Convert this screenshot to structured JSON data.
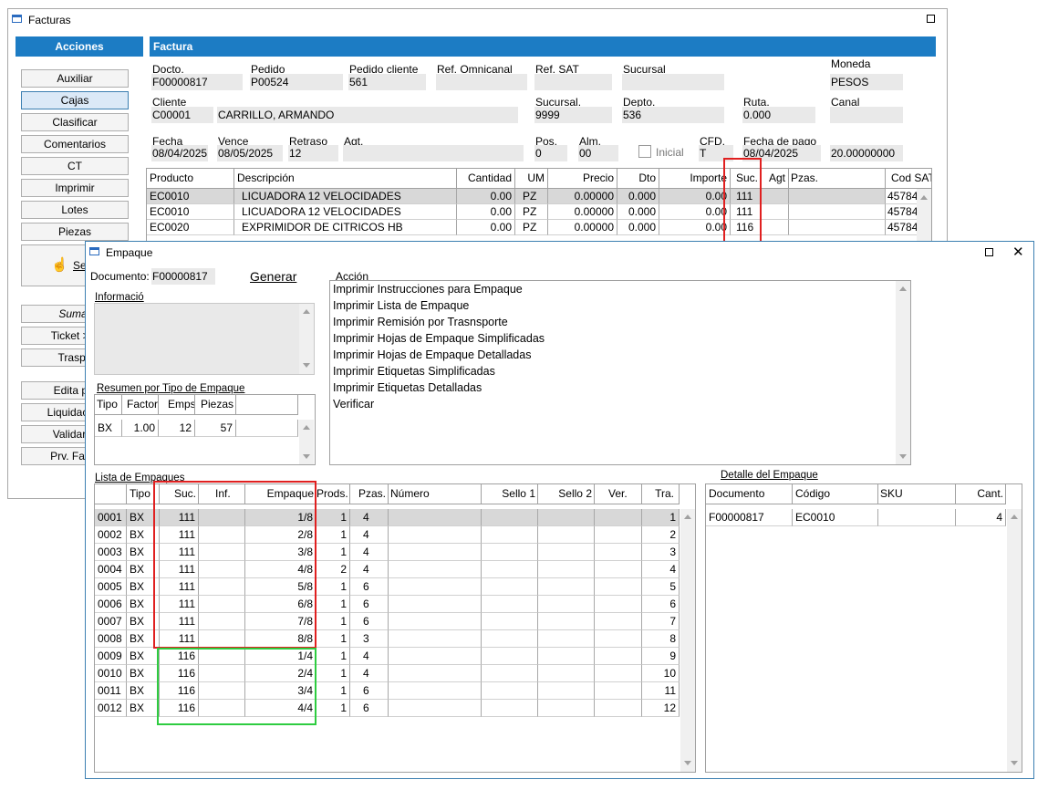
{
  "facturas": {
    "title": "Facturas",
    "acciones_header": "Acciones",
    "factura_header": "Factura",
    "actions": [
      "Auxiliar",
      "Cajas",
      "Clasificar",
      "Comentarios",
      "CT",
      "Imprimir",
      "Lotes",
      "Piezas"
    ],
    "partial_buttons": [
      "Se",
      "Sumar",
      "Ticket > F",
      "Traspa",
      "Edita pie",
      "Liquidación",
      "Validar C",
      "Prv. Facto"
    ],
    "fields": {
      "docto_label": "Docto.",
      "docto": "F00000817",
      "pedido_label": "Pedido",
      "pedido": "P00524",
      "pedido_cliente_label": "Pedido cliente",
      "pedido_cliente": "561",
      "ref_omni_label": "Ref. Omnicanal",
      "ref_omni": "",
      "ref_sat_label": "Ref. SAT",
      "ref_sat": "",
      "sucursal_label": "Sucursal",
      "sucursal": "",
      "moneda_label": "Moneda",
      "moneda": "PESOS",
      "cliente_label": "Cliente",
      "cliente_code": "C00001",
      "cliente_name": "CARRILLO, ARMANDO",
      "sucursal2_label": "Sucursal.",
      "sucursal2": "9999",
      "depto_label": "Depto.",
      "depto": "536",
      "ruta_label": "Ruta.",
      "ruta": "0.000",
      "canal_label": "Canal",
      "canal": "",
      "fecha_label": "Fecha",
      "fecha": "08/04/2025",
      "vence_label": "Vence",
      "vence": "08/05/2025",
      "retraso_label": "Retraso",
      "retraso": "12",
      "agt_label": "Agt.",
      "agt": "",
      "pos_label": "Pos.",
      "pos": "0",
      "alm_label": "Alm.",
      "alm": "00",
      "inicial_label": "Inicial",
      "cfd_label": "CFD.",
      "cfd": "T",
      "fecha_pago_label": "Fecha de pago",
      "fecha_pago": "08/04/2025",
      "tipo_cambio": "20.00000000"
    },
    "grid_headers": [
      "Producto",
      "Descripción",
      "Cantidad",
      "UM",
      "Precio",
      "Dto",
      "Importe",
      "Suc.",
      "Agt",
      "Pzas.",
      "Cod SAT"
    ],
    "rows": [
      {
        "producto": "EC0010",
        "descripcion": "LICUADORA 12 VELOCIDADES",
        "cantidad": "0.00",
        "um": "PZ",
        "precio": "0.00000",
        "dto": "0.000",
        "importe": "0.00",
        "suc": "111",
        "cod_sat": "45784"
      },
      {
        "producto": "EC0010",
        "descripcion": "LICUADORA 12 VELOCIDADES",
        "cantidad": "0.00",
        "um": "PZ",
        "precio": "0.00000",
        "dto": "0.000",
        "importe": "0.00",
        "suc": "111",
        "cod_sat": "45784"
      },
      {
        "producto": "EC0020",
        "descripcion": "EXPRIMIDOR DE CITRICOS HB",
        "cantidad": "0.00",
        "um": "PZ",
        "precio": "0.00000",
        "dto": "0.000",
        "importe": "0.00",
        "suc": "116",
        "cod_sat": "45784"
      }
    ]
  },
  "empaque": {
    "title": "Empaque",
    "documento_label": "Documento:",
    "documento": "F00000817",
    "generar_label": "Generar",
    "informacion_label": "Informació",
    "accion_label": "Acción",
    "acciones": [
      "Imprimir Instrucciones para Empaque",
      "Imprimir Lista de Empaque",
      "Imprimir Remisión por Trasnsporte",
      "Imprimir Hojas de Empaque Simplificadas",
      "Imprimir Hojas de Empaque Detalladas",
      "Imprimir Etiquetas Simplificadas",
      "Imprimir Etiquetas Detalladas",
      "Verificar"
    ],
    "resumen_label": "Resumen por Tipo de Empaque",
    "resumen_headers": [
      "Tipo",
      "Factor",
      "Emps",
      "Piezas"
    ],
    "resumen_rows": [
      {
        "tipo": "BX",
        "factor": "1.00",
        "emps": "12",
        "piezas": "57"
      }
    ],
    "lista_label": "Lista de Empaques",
    "lista_headers": [
      "",
      "Tipo",
      "Suc.",
      "Inf.",
      "Empaque",
      "Prods.",
      "Pzas.",
      "Número",
      "Sello 1",
      "Sello 2",
      "Ver.",
      "Tra."
    ],
    "lista_rows": [
      {
        "id": "0001",
        "tipo": "BX",
        "suc": "111",
        "empaque": "1/8",
        "prods": "1",
        "pzas": "4",
        "tra": "1"
      },
      {
        "id": "0002",
        "tipo": "BX",
        "suc": "111",
        "empaque": "2/8",
        "prods": "1",
        "pzas": "4",
        "tra": "2"
      },
      {
        "id": "0003",
        "tipo": "BX",
        "suc": "111",
        "empaque": "3/8",
        "prods": "1",
        "pzas": "4",
        "tra": "3"
      },
      {
        "id": "0004",
        "tipo": "BX",
        "suc": "111",
        "empaque": "4/8",
        "prods": "2",
        "pzas": "4",
        "tra": "4"
      },
      {
        "id": "0005",
        "tipo": "BX",
        "suc": "111",
        "empaque": "5/8",
        "prods": "1",
        "pzas": "6",
        "tra": "5"
      },
      {
        "id": "0006",
        "tipo": "BX",
        "suc": "111",
        "empaque": "6/8",
        "prods": "1",
        "pzas": "6",
        "tra": "6"
      },
      {
        "id": "0007",
        "tipo": "BX",
        "suc": "111",
        "empaque": "7/8",
        "prods": "1",
        "pzas": "6",
        "tra": "7"
      },
      {
        "id": "0008",
        "tipo": "BX",
        "suc": "111",
        "empaque": "8/8",
        "prods": "1",
        "pzas": "3",
        "tra": "8"
      },
      {
        "id": "0009",
        "tipo": "BX",
        "suc": "116",
        "empaque": "1/4",
        "prods": "1",
        "pzas": "4",
        "tra": "9"
      },
      {
        "id": "0010",
        "tipo": "BX",
        "suc": "116",
        "empaque": "2/4",
        "prods": "1",
        "pzas": "4",
        "tra": "10"
      },
      {
        "id": "0011",
        "tipo": "BX",
        "suc": "116",
        "empaque": "3/4",
        "prods": "1",
        "pzas": "6",
        "tra": "11"
      },
      {
        "id": "0012",
        "tipo": "BX",
        "suc": "116",
        "empaque": "4/4",
        "prods": "1",
        "pzas": "6",
        "tra": "12"
      }
    ],
    "detalle_label": "Detalle del Empaque",
    "detalle_headers": [
      "Documento",
      "Código",
      "SKU",
      "Cant."
    ],
    "detalle_rows": [
      {
        "documento": "F00000817",
        "codigo": "EC0010",
        "sku": "",
        "cant": "4"
      }
    ]
  },
  "colors": {
    "accent": "#1c7cc4",
    "highlight_red": "#e02020",
    "highlight_green": "#2ecc40"
  }
}
